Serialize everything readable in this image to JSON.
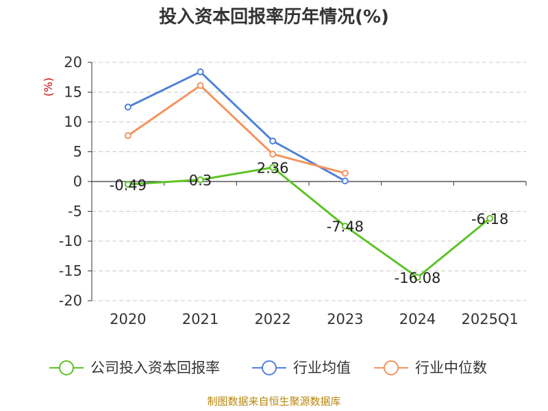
{
  "chart_data": {
    "type": "line",
    "title": "投入资本回报率历年情况(%)",
    "unit_label": "(%)",
    "categories": [
      "2020",
      "2021",
      "2022",
      "2023",
      "2024",
      "2025Q1"
    ],
    "ylim": [
      -20,
      20
    ],
    "yticks": [
      "20",
      "15",
      "10",
      "5",
      "0",
      "-5",
      "-10",
      "-15",
      "-20"
    ],
    "grid": true,
    "legend_position": "bottom",
    "series": [
      {
        "name": "公司投入资本回报率",
        "color": "#5dc225",
        "values": [
          -0.49,
          0.3,
          2.36,
          -7.48,
          -16.08,
          -6.18
        ],
        "labels": [
          "-0.49",
          "0.3",
          "2.36",
          "-7.48",
          "-16.08",
          "-6.18"
        ]
      },
      {
        "name": "行业均值",
        "color": "#4f81d9",
        "values": [
          12.5,
          18.4,
          6.8,
          0.1,
          null,
          null
        ]
      },
      {
        "name": "行业中位数",
        "color": "#f4935c",
        "values": [
          7.7,
          16.1,
          4.6,
          1.4,
          null,
          null
        ]
      }
    ],
    "source": "制图数据来自恒生聚源数据库"
  }
}
